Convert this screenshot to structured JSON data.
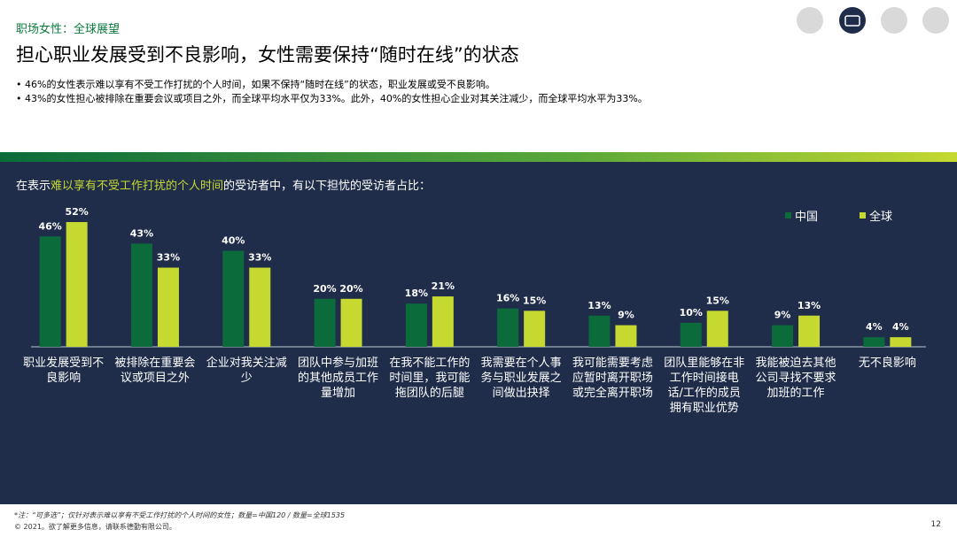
{
  "header": {
    "kicker": "职场女性：全球展望",
    "title": "担心职业发展受到不良影响，女性需要保持“随时在线”的状态",
    "bullets": [
      "46%的女性表示难以享有不受工作打扰的个人时间，如果不保持“随时在线”的状态，职业发展或受不良影响。",
      "43%的女性担心被排除在重要会议或项目之外，而全球平均水平仅为33%。此外，40%的女性担心企业对其关注减少，而全球平均水平为33%。"
    ]
  },
  "chart_data": {
    "type": "bar",
    "subtitle": [
      "在表示",
      "难以享有不受工作打扰的个人时间",
      "的受访者中，有以下担忧的受访者占比："
    ],
    "categories": [
      "职业发展受到不良影响",
      "被排除在重要会议或项目之外",
      "企业对我关注减少",
      "团队中参与加班的其他成员工作量增加",
      "在我不能工作的时间里，我可能拖团队的后腿",
      "我需要在个人事务与职业发展之间做出抉择",
      "我可能需要考虑应暂时离开职场或完全离开职场",
      "团队里能够在非工作时间接电话/工作的成员拥有职业优势",
      "我能被迫去其他公司寻找不要求加班的工作",
      "无不良影响"
    ],
    "series": [
      {
        "name": "中国",
        "color": "#0b6b3a",
        "values": [
          46,
          43,
          40,
          20,
          18,
          16,
          13,
          10,
          9,
          4
        ],
        "value_labels": [
          "46%",
          "43%",
          "40%",
          "20%",
          "18%",
          "16%",
          "13%",
          "10%",
          "9%",
          "4%"
        ]
      },
      {
        "name": "全球",
        "color": "#c5d930",
        "values": [
          52,
          33,
          33,
          20,
          21,
          15,
          9,
          15,
          13,
          4
        ],
        "value_labels": [
          "52%",
          "33%",
          "33%",
          "20%",
          "21%",
          "15%",
          "9%",
          "15%",
          "13%",
          "4%"
        ]
      }
    ],
    "legend": "top-right"
  },
  "footer": {
    "note": "*注：“可多选”；仅针对表示难以享有不受工作打扰的个人时间的女性；数量=中国120 / 数量=全球1535",
    "copyright": "© 2021。欲了解更多信息，请联系德勤有限公司。",
    "page": "12"
  }
}
